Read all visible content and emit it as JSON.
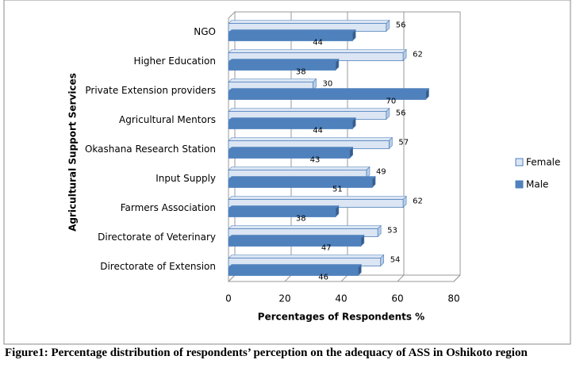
{
  "chart_data": {
    "type": "bar",
    "orientation": "horizontal",
    "caption": "Figure1: Percentage distribution of respondents’ perception on the adequacy of ASS in Oshikoto region",
    "x_label": "Percentages of Respondents  %",
    "y_label": "Agricultural Support Services",
    "categories": [
      "NGO",
      "Higher Education",
      "Private Extension providers",
      "Agricultural Mentors",
      "Okashana Research Station",
      "Input Supply",
      "Farmers Association",
      "Directorate of Veterinary",
      "Directorate of Extension"
    ],
    "series": [
      {
        "name": "Female",
        "color": "#dbe5f3",
        "values": [
          56,
          62,
          30,
          56,
          57,
          49,
          62,
          53,
          54
        ]
      },
      {
        "name": "Male",
        "color": "#4f81bd",
        "values": [
          44,
          38,
          70,
          44,
          43,
          51,
          38,
          47,
          46
        ]
      }
    ],
    "xlim": [
      0,
      80
    ],
    "xticks": [
      0,
      20,
      40,
      60,
      80
    ],
    "grid": true,
    "legend": "right"
  }
}
